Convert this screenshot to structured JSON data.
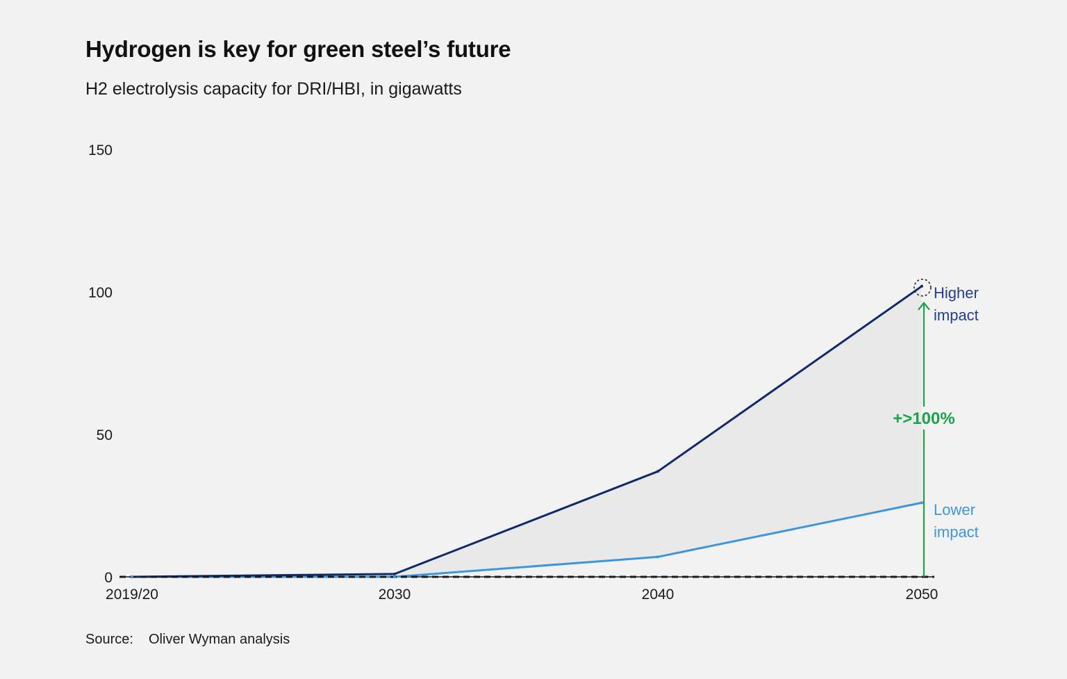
{
  "chart_data": {
    "type": "area",
    "title": "Hydrogen is key for green steel’s future",
    "subtitle": "H2 electrolysis capacity for DRI/HBI, in gigawatts",
    "x": [
      "2019/20",
      "2030",
      "2040",
      "2050"
    ],
    "ylim": [
      0,
      150
    ],
    "yticks": [
      "0",
      "50",
      "100",
      "150"
    ],
    "series": [
      {
        "name": "Higher impact",
        "label_lines": [
          "Higher",
          "impact"
        ],
        "values": [
          0,
          1,
          37,
          102
        ],
        "color": "#0f2a6b"
      },
      {
        "name": "Lower impact",
        "label_lines": [
          "Lower",
          "impact"
        ],
        "values": [
          0,
          0,
          7,
          26
        ],
        "color": "#3d96db"
      }
    ],
    "band_fill": "#e9e9e9",
    "annotation": {
      "text": "+>100%",
      "color": "#1aa34a"
    },
    "grid": false,
    "legend": "direct labels at line ends"
  },
  "source": {
    "label": "Source:",
    "text": "Oliver Wyman analysis"
  }
}
